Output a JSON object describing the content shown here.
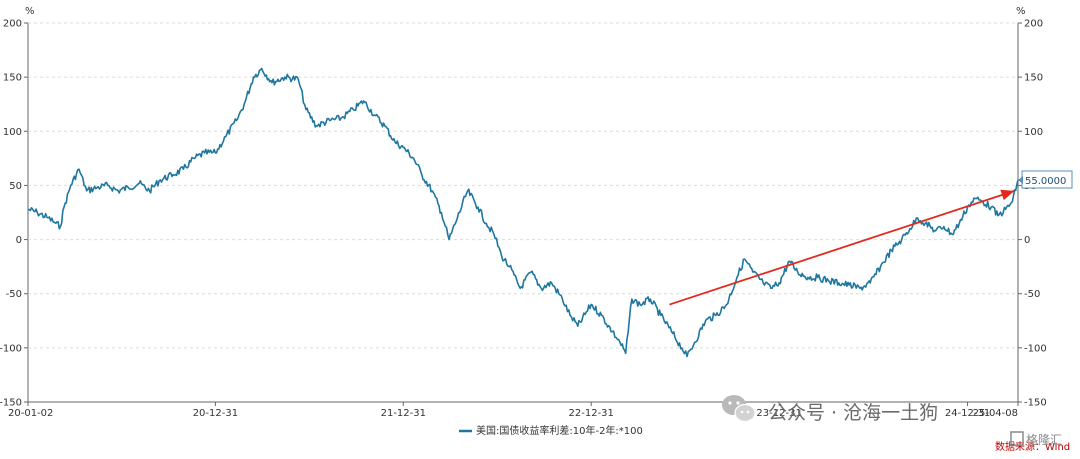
{
  "chart_data": {
    "type": "line",
    "unit_left": "%",
    "unit_right": "%",
    "ylim": [
      -150,
      200
    ],
    "y_ticks": [
      -150,
      -100,
      -50,
      0,
      50,
      100,
      150,
      200
    ],
    "y_tick_labels": [
      "-150",
      "-100",
      "-50",
      "0",
      "50",
      "100",
      "150",
      "200"
    ],
    "x_range": [
      "2020-01-02",
      "2025-04-08"
    ],
    "x_ticks": [
      {
        "date": "2020-01-02",
        "label": "20-01-02"
      },
      {
        "date": "2020-12-31",
        "label": "20-12-31"
      },
      {
        "date": "2021-12-31",
        "label": "21-12-31"
      },
      {
        "date": "2022-12-31",
        "label": "22-12-31"
      },
      {
        "date": "2023-12-31",
        "label": "23-12-31"
      },
      {
        "date": "2024-12-31",
        "label": "24-12-31"
      },
      {
        "date": "2025-04-08",
        "label": "25-04-08"
      }
    ],
    "grid": true,
    "legend_position": "bottom-center",
    "color": "#1f77a0",
    "series": [
      {
        "name": "美国:国债收益率利差:10年-2年:*100",
        "points": [
          [
            "2020-01-02",
            28
          ],
          [
            "2020-01-20",
            25
          ],
          [
            "2020-02-10",
            20
          ],
          [
            "2020-02-25",
            15
          ],
          [
            "2020-03-05",
            12
          ],
          [
            "2020-03-12",
            30
          ],
          [
            "2020-03-25",
            50
          ],
          [
            "2020-04-10",
            65
          ],
          [
            "2020-04-25",
            45
          ],
          [
            "2020-05-15",
            48
          ],
          [
            "2020-06-05",
            50
          ],
          [
            "2020-06-25",
            45
          ],
          [
            "2020-07-15",
            48
          ],
          [
            "2020-08-05",
            52
          ],
          [
            "2020-08-25",
            45
          ],
          [
            "2020-09-15",
            55
          ],
          [
            "2020-10-10",
            60
          ],
          [
            "2020-10-30",
            65
          ],
          [
            "2020-11-20",
            75
          ],
          [
            "2020-12-10",
            80
          ],
          [
            "2020-12-31",
            80
          ],
          [
            "2021-01-20",
            95
          ],
          [
            "2021-02-10",
            110
          ],
          [
            "2021-02-25",
            125
          ],
          [
            "2021-03-15",
            150
          ],
          [
            "2021-03-31",
            158
          ],
          [
            "2021-04-20",
            145
          ],
          [
            "2021-05-15",
            150
          ],
          [
            "2021-06-10",
            148
          ],
          [
            "2021-06-25",
            120
          ],
          [
            "2021-07-15",
            105
          ],
          [
            "2021-08-10",
            110
          ],
          [
            "2021-09-01",
            112
          ],
          [
            "2021-09-25",
            120
          ],
          [
            "2021-10-15",
            128
          ],
          [
            "2021-11-05",
            115
          ],
          [
            "2021-11-25",
            105
          ],
          [
            "2021-12-15",
            90
          ],
          [
            "2021-12-31",
            85
          ],
          [
            "2022-01-20",
            75
          ],
          [
            "2022-02-05",
            60
          ],
          [
            "2022-02-25",
            45
          ],
          [
            "2022-03-15",
            25
          ],
          [
            "2022-03-30",
            0
          ],
          [
            "2022-04-15",
            20
          ],
          [
            "2022-05-05",
            45
          ],
          [
            "2022-05-25",
            30
          ],
          [
            "2022-06-10",
            15
          ],
          [
            "2022-06-25",
            5
          ],
          [
            "2022-07-10",
            -15
          ],
          [
            "2022-07-25",
            -25
          ],
          [
            "2022-08-15",
            -45
          ],
          [
            "2022-09-05",
            -30
          ],
          [
            "2022-09-25",
            -45
          ],
          [
            "2022-10-15",
            -40
          ],
          [
            "2022-11-05",
            -55
          ],
          [
            "2022-11-20",
            -70
          ],
          [
            "2022-12-05",
            -80
          ],
          [
            "2022-12-31",
            -60
          ],
          [
            "2023-01-20",
            -70
          ],
          [
            "2023-02-10",
            -85
          ],
          [
            "2023-02-25",
            -95
          ],
          [
            "2023-03-08",
            -105
          ],
          [
            "2023-03-20",
            -55
          ],
          [
            "2023-04-05",
            -60
          ],
          [
            "2023-04-25",
            -55
          ],
          [
            "2023-05-15",
            -70
          ],
          [
            "2023-06-05",
            -85
          ],
          [
            "2023-06-25",
            -100
          ],
          [
            "2023-07-05",
            -108
          ],
          [
            "2023-07-20",
            -95
          ],
          [
            "2023-08-10",
            -75
          ],
          [
            "2023-08-30",
            -70
          ],
          [
            "2023-09-20",
            -60
          ],
          [
            "2023-10-10",
            -35
          ],
          [
            "2023-10-25",
            -18
          ],
          [
            "2023-11-10",
            -30
          ],
          [
            "2023-11-30",
            -40
          ],
          [
            "2023-12-15",
            -45
          ],
          [
            "2023-12-31",
            -40
          ],
          [
            "2024-01-20",
            -20
          ],
          [
            "2024-02-05",
            -30
          ],
          [
            "2024-02-25",
            -35
          ],
          [
            "2024-03-15",
            -35
          ],
          [
            "2024-04-05",
            -38
          ],
          [
            "2024-04-25",
            -40
          ],
          [
            "2024-05-15",
            -42
          ],
          [
            "2024-06-05",
            -45
          ],
          [
            "2024-06-25",
            -40
          ],
          [
            "2024-07-15",
            -25
          ],
          [
            "2024-08-05",
            -10
          ],
          [
            "2024-08-25",
            0
          ],
          [
            "2024-09-10",
            10
          ],
          [
            "2024-09-25",
            20
          ],
          [
            "2024-10-10",
            15
          ],
          [
            "2024-10-30",
            8
          ],
          [
            "2024-11-15",
            12
          ],
          [
            "2024-12-01",
            5
          ],
          [
            "2024-12-15",
            15
          ],
          [
            "2024-12-31",
            30
          ],
          [
            "2025-01-15",
            38
          ],
          [
            "2025-01-30",
            35
          ],
          [
            "2025-02-15",
            30
          ],
          [
            "2025-02-28",
            22
          ],
          [
            "2025-03-15",
            28
          ],
          [
            "2025-03-28",
            35
          ],
          [
            "2025-04-08",
            55
          ]
        ]
      }
    ],
    "last_value_label": "55.0000",
    "trend_arrow": {
      "from": [
        "2023-06-01",
        -60
      ],
      "to": [
        "2025-04-01",
        45
      ],
      "color": "#e5281e"
    }
  },
  "watermark": {
    "text": "公众号 · 沧海一土狗",
    "brand": "格隆汇"
  },
  "source_note": "数据来源：Wind"
}
